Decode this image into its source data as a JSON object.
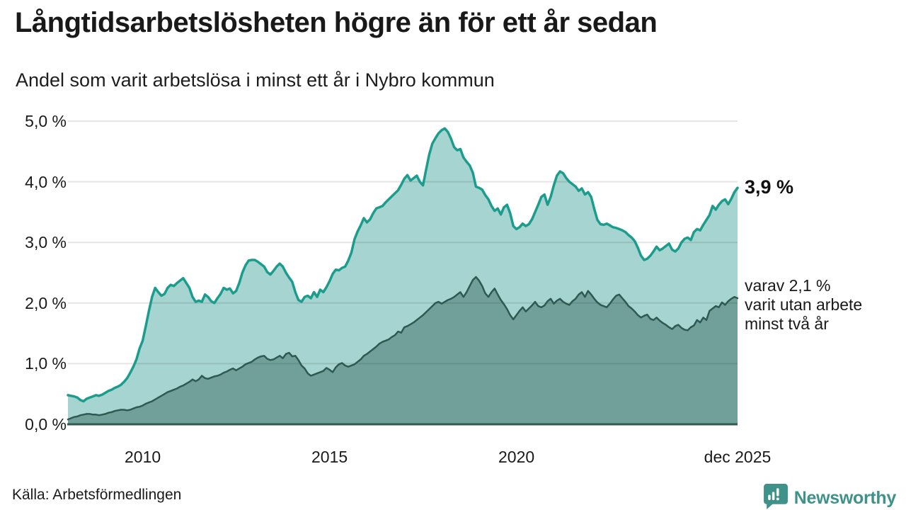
{
  "header": {
    "title": "Långtidsarbetslösheten högre än för ett år sedan",
    "subtitle": "Andel som varit arbetslösa i minst ett år i Nybro kommun"
  },
  "chart_data": {
    "type": "area",
    "title": "Långtidsarbetslösheten högre än för ett år sedan",
    "subtitle": "Andel som varit arbetslösa i minst ett år i Nybro kommun",
    "x_unit": "month",
    "x_start": "2008-01",
    "x_end": "2025-12",
    "ylim": [
      0,
      5
    ],
    "grid": true,
    "legend": "none",
    "y_ticks": [
      {
        "value": 0,
        "label": "0,0 %"
      },
      {
        "value": 1,
        "label": "1,0 %"
      },
      {
        "value": 2,
        "label": "2,0 %"
      },
      {
        "value": 3,
        "label": "3,0 %"
      },
      {
        "value": 4,
        "label": "4,0 %"
      },
      {
        "value": 5,
        "label": "5,0 %"
      }
    ],
    "x_ticks": [
      {
        "index": 24,
        "label": "2010"
      },
      {
        "index": 84,
        "label": "2015"
      },
      {
        "index": 144,
        "label": "2020"
      },
      {
        "index": 215,
        "label": "dec 2025"
      }
    ],
    "series": [
      {
        "name": "Andel arbetslösa minst ett år",
        "line_color": "#1c9c8c",
        "fill_color": "#a6d4d0",
        "line_width": 3.5,
        "values": [
          0.48,
          0.47,
          0.46,
          0.44,
          0.4,
          0.38,
          0.42,
          0.44,
          0.46,
          0.48,
          0.47,
          0.49,
          0.52,
          0.55,
          0.57,
          0.6,
          0.62,
          0.65,
          0.7,
          0.76,
          0.85,
          0.95,
          1.07,
          1.25,
          1.38,
          1.62,
          1.87,
          2.1,
          2.25,
          2.18,
          2.12,
          2.15,
          2.25,
          2.3,
          2.28,
          2.33,
          2.37,
          2.41,
          2.33,
          2.25,
          2.1,
          2.02,
          2.04,
          2.02,
          2.14,
          2.1,
          2.03,
          2.0,
          2.08,
          2.15,
          2.25,
          2.22,
          2.24,
          2.16,
          2.2,
          2.33,
          2.5,
          2.62,
          2.7,
          2.71,
          2.71,
          2.68,
          2.64,
          2.6,
          2.51,
          2.47,
          2.53,
          2.6,
          2.65,
          2.6,
          2.5,
          2.42,
          2.35,
          2.18,
          2.05,
          2.02,
          2.1,
          2.12,
          2.08,
          2.18,
          2.1,
          2.22,
          2.18,
          2.26,
          2.36,
          2.48,
          2.55,
          2.54,
          2.58,
          2.6,
          2.7,
          2.83,
          3.05,
          3.18,
          3.28,
          3.4,
          3.33,
          3.38,
          3.48,
          3.56,
          3.58,
          3.6,
          3.66,
          3.71,
          3.76,
          3.81,
          3.86,
          3.95,
          4.05,
          4.11,
          4.02,
          4.06,
          4.1,
          4.0,
          3.94,
          4.2,
          4.45,
          4.63,
          4.72,
          4.8,
          4.85,
          4.88,
          4.82,
          4.71,
          4.57,
          4.52,
          4.54,
          4.4,
          4.33,
          4.27,
          4.15,
          3.92,
          3.9,
          3.87,
          3.78,
          3.71,
          3.6,
          3.52,
          3.56,
          3.46,
          3.58,
          3.62,
          3.48,
          3.27,
          3.22,
          3.25,
          3.31,
          3.27,
          3.3,
          3.38,
          3.5,
          3.62,
          3.75,
          3.79,
          3.62,
          3.75,
          3.94,
          4.1,
          4.17,
          4.14,
          4.06,
          4.0,
          3.96,
          3.92,
          3.85,
          3.89,
          3.79,
          3.83,
          3.75,
          3.55,
          3.37,
          3.3,
          3.29,
          3.31,
          3.28,
          3.25,
          3.24,
          3.22,
          3.2,
          3.17,
          3.12,
          3.08,
          3.02,
          2.91,
          2.78,
          2.71,
          2.73,
          2.78,
          2.85,
          2.93,
          2.87,
          2.9,
          2.94,
          2.98,
          2.88,
          2.85,
          2.9,
          3.0,
          3.06,
          3.08,
          3.04,
          3.17,
          3.22,
          3.2,
          3.29,
          3.37,
          3.45,
          3.6,
          3.54,
          3.62,
          3.68,
          3.71,
          3.63,
          3.72,
          3.83,
          3.9
        ]
      },
      {
        "name": "Andel arbetslösa minst två år",
        "line_color": "#2f5951",
        "fill_color": "#71a09b",
        "line_width": 2.5,
        "values": [
          0.08,
          0.1,
          0.12,
          0.13,
          0.15,
          0.16,
          0.17,
          0.17,
          0.16,
          0.16,
          0.15,
          0.16,
          0.17,
          0.19,
          0.2,
          0.22,
          0.23,
          0.24,
          0.24,
          0.23,
          0.24,
          0.26,
          0.28,
          0.29,
          0.31,
          0.34,
          0.36,
          0.38,
          0.41,
          0.44,
          0.47,
          0.5,
          0.53,
          0.55,
          0.57,
          0.59,
          0.62,
          0.64,
          0.67,
          0.7,
          0.74,
          0.71,
          0.74,
          0.8,
          0.76,
          0.75,
          0.77,
          0.79,
          0.8,
          0.82,
          0.85,
          0.87,
          0.9,
          0.92,
          0.89,
          0.92,
          0.95,
          0.99,
          1.01,
          1.03,
          1.07,
          1.1,
          1.12,
          1.13,
          1.08,
          1.06,
          1.07,
          1.1,
          1.13,
          1.09,
          1.16,
          1.18,
          1.12,
          1.13,
          1.06,
          0.97,
          0.92,
          0.84,
          0.8,
          0.82,
          0.84,
          0.86,
          0.88,
          0.93,
          0.9,
          0.86,
          0.94,
          0.99,
          1.01,
          0.97,
          0.95,
          0.97,
          0.99,
          1.03,
          1.07,
          1.13,
          1.16,
          1.2,
          1.24,
          1.28,
          1.33,
          1.36,
          1.38,
          1.4,
          1.44,
          1.47,
          1.53,
          1.51,
          1.6,
          1.62,
          1.65,
          1.68,
          1.72,
          1.76,
          1.8,
          1.85,
          1.9,
          1.95,
          2.0,
          2.02,
          1.99,
          2.02,
          2.05,
          2.07,
          2.1,
          2.14,
          2.18,
          2.1,
          2.18,
          2.28,
          2.38,
          2.43,
          2.37,
          2.28,
          2.16,
          2.1,
          2.18,
          2.24,
          2.14,
          2.05,
          1.98,
          1.9,
          1.8,
          1.73,
          1.8,
          1.87,
          1.93,
          1.86,
          1.91,
          1.96,
          2.02,
          1.95,
          1.93,
          1.96,
          2.03,
          2.07,
          1.99,
          2.04,
          2.07,
          2.02,
          1.99,
          1.97,
          2.03,
          2.07,
          2.14,
          2.18,
          2.1,
          2.2,
          2.14,
          2.07,
          2.01,
          1.97,
          1.95,
          1.93,
          1.99,
          2.06,
          2.12,
          2.14,
          2.08,
          2.02,
          1.95,
          1.91,
          1.86,
          1.8,
          1.76,
          1.79,
          1.81,
          1.74,
          1.72,
          1.76,
          1.71,
          1.67,
          1.64,
          1.6,
          1.57,
          1.62,
          1.64,
          1.59,
          1.56,
          1.55,
          1.6,
          1.63,
          1.72,
          1.68,
          1.76,
          1.72,
          1.87,
          1.91,
          1.95,
          1.93,
          2.01,
          1.97,
          2.03,
          2.07,
          2.1,
          2.08
        ]
      }
    ],
    "annotations": {
      "latest_value": "3,9 %",
      "secondary_lines": [
        "varav 2,1 %",
        "varit utan arbete",
        "minst två år"
      ]
    }
  },
  "footer": {
    "source": "Källa: Arbetsförmedlingen",
    "brand": "Newsworthy"
  },
  "colors": {
    "accent_teal": "#1c9c8c",
    "light_fill": "#a6d4d0",
    "dark_fill": "#71a09b",
    "dark_line": "#2f5951",
    "brand_teal": "#3e928a",
    "text": "#1a1a1a"
  }
}
